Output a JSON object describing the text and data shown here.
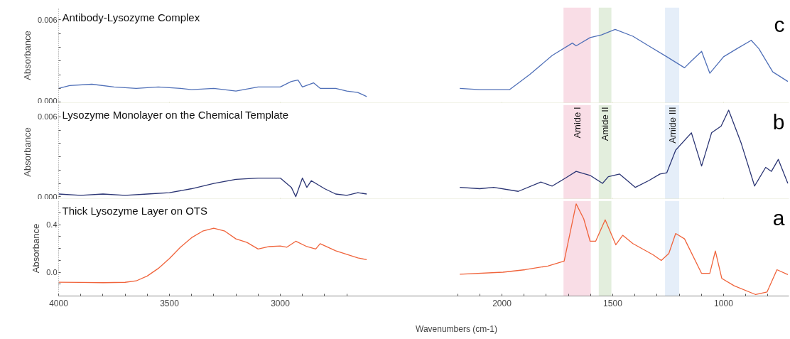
{
  "chart_data": [
    {
      "type": "line",
      "title": "Antibody-Lysozyme Complex",
      "ylabel": "Absorbance",
      "tick_labels": "y",
      "annotations": [
        "c"
      ],
      "xlim": [
        4000,
        705
      ],
      "ylim": [
        -0.0001,
        0.0069
      ],
      "xticks": [
        {
          "value": 4000,
          "label": null
        },
        {
          "value": 3500,
          "label": null
        },
        {
          "value": 3000,
          "label": null
        },
        {
          "value": 2000,
          "label": null
        },
        {
          "value": 1500,
          "label": null
        },
        {
          "value": 1000,
          "label": null
        }
      ],
      "yticks": [
        {
          "value": 0,
          "label": "0.000"
        },
        {
          "value": 0.001,
          "label": null
        },
        {
          "value": 0.002,
          "label": null
        },
        {
          "value": 0.003,
          "label": null
        },
        {
          "value": 0.004,
          "label": null
        },
        {
          "value": 0.005,
          "label": null
        },
        {
          "value": 0.006,
          "label": "0.006"
        }
      ],
      "bands": [
        {
          "axis": "x",
          "from": 1722,
          "to": 1599,
          "color": "#f9dde6"
        },
        {
          "axis": "x",
          "from": 1563,
          "to": 1506,
          "color": "#e3eedd"
        },
        {
          "axis": "x",
          "from": 1264,
          "to": 1200,
          "color": "#e5eef9"
        }
      ],
      "series": [
        {
          "color": "#5070b8",
          "x": [
            4000,
            3950,
            3850,
            3750,
            3650,
            3550,
            3450,
            3400,
            3300,
            3200,
            3100,
            3000,
            2950,
            2920,
            2900,
            2850,
            2820,
            2750,
            2700,
            2650,
            2610,
            2400,
            2190,
            2100,
            1966,
            1875,
            1773,
            1682,
            1665,
            1602,
            1551,
            1489,
            1409,
            1338,
            1256,
            1176,
            1145,
            1099,
            1062,
            1000,
            939,
            875,
            841,
            778,
            710
          ],
          "values": [
            0.001,
            0.0012,
            0.0013,
            0.0011,
            0.001,
            0.0011,
            0.001,
            0.0009,
            0.001,
            0.0008,
            0.0011,
            0.0011,
            0.0015,
            0.0016,
            0.0011,
            0.0014,
            0.001,
            0.001,
            0.0008,
            0.0007,
            0.0004,
            null,
            0.001,
            0.0009,
            0.0009,
            0.002,
            0.0034,
            0.0043,
            0.0041,
            0.0047,
            0.0049,
            0.0053,
            0.0048,
            0.0041,
            0.0033,
            0.0025,
            0.003,
            0.0037,
            0.0021,
            0.0033,
            0.0039,
            0.0045,
            0.0039,
            0.0022,
            0.0015
          ]
        }
      ]
    },
    {
      "type": "line",
      "title": "Lysozyme Monolayer on the Chemical Template",
      "ylabel": "Absorbance",
      "tick_labels": "y",
      "annotations": [
        "b"
      ],
      "xlim": [
        4000,
        705
      ],
      "ylim": [
        -0.0002,
        0.0069
      ],
      "xticks": [
        {
          "value": 4000,
          "label": null
        },
        {
          "value": 3500,
          "label": null
        },
        {
          "value": 3000,
          "label": null
        },
        {
          "value": 2000,
          "label": null
        },
        {
          "value": 1500,
          "label": null
        },
        {
          "value": 1000,
          "label": null
        }
      ],
      "yticks": [
        {
          "value": 0,
          "label": "0.000"
        },
        {
          "value": 0.001,
          "label": null
        },
        {
          "value": 0.002,
          "label": null
        },
        {
          "value": 0.003,
          "label": null
        },
        {
          "value": 0.004,
          "label": null
        },
        {
          "value": 0.005,
          "label": null
        },
        {
          "value": 0.006,
          "label": "0.006"
        }
      ],
      "bands": [
        {
          "axis": "x",
          "from": 1722,
          "to": 1599,
          "color": "#f9dde6",
          "label": "Amide I"
        },
        {
          "axis": "x",
          "from": 1563,
          "to": 1506,
          "color": "#e3eedd",
          "label": "Amide II"
        },
        {
          "axis": "x",
          "from": 1264,
          "to": 1200,
          "color": "#e5eef9",
          "label": "Amide III"
        }
      ],
      "series": [
        {
          "color": "#2b3574",
          "x": [
            4000,
            3900,
            3800,
            3700,
            3600,
            3500,
            3400,
            3300,
            3200,
            3100,
            3000,
            2950,
            2930,
            2900,
            2880,
            2860,
            2800,
            2750,
            2700,
            2650,
            2610,
            2400,
            2190,
            2100,
            2037,
            1926,
            1824,
            1773,
            1713,
            1665,
            1602,
            1546,
            1520,
            1469,
            1398,
            1338,
            1287,
            1256,
            1216,
            1145,
            1099,
            1054,
            1011,
            977,
            920,
            860,
            810,
            784,
            753,
            710
          ],
          "values": [
            0.0002,
            0.0001,
            0.0002,
            0.0001,
            0.0002,
            0.0003,
            0.0006,
            0.001,
            0.0013,
            0.0014,
            0.0014,
            0.0007,
            0.0,
            0.0014,
            0.0007,
            0.0012,
            0.0006,
            0.0002,
            0.0001,
            0.0003,
            0.0002,
            null,
            0.0007,
            0.0006,
            0.0007,
            0.0004,
            0.0011,
            0.0008,
            0.0014,
            0.0019,
            0.0016,
            0.001,
            0.0015,
            0.0017,
            0.0007,
            0.0012,
            0.0017,
            0.0018,
            0.0035,
            0.0048,
            0.0023,
            0.0048,
            0.0053,
            0.0065,
            0.004,
            0.0008,
            0.0022,
            0.0019,
            0.0028,
            0.001
          ]
        }
      ]
    },
    {
      "type": "line",
      "title": "Thick Lysozyme Layer on OTS",
      "ylabel": "Absorbance",
      "xlabel": "Wavenumbers (cm-1)",
      "annotations": [
        "a"
      ],
      "xlim": [
        4000,
        705
      ],
      "ylim": [
        -0.2,
        0.6
      ],
      "xticks": [
        4000,
        {
          "value": 3900,
          "label": null
        },
        {
          "value": 3800,
          "label": null
        },
        {
          "value": 3700,
          "label": null
        },
        {
          "value": 3600,
          "label": null
        },
        3500,
        {
          "value": 3400,
          "label": null
        },
        {
          "value": 3300,
          "label": null
        },
        {
          "value": 3200,
          "label": null
        },
        {
          "value": 3100,
          "label": null
        },
        3000,
        {
          "value": 2900,
          "label": null
        },
        {
          "value": 2800,
          "label": null
        },
        {
          "value": 2700,
          "label": null
        },
        {
          "value": 2200,
          "label": null
        },
        {
          "value": 2100,
          "label": null
        },
        2000,
        {
          "value": 1900,
          "label": null
        },
        {
          "value": 1800,
          "label": null
        },
        {
          "value": 1700,
          "label": null
        },
        {
          "value": 1600,
          "label": null
        },
        1500,
        {
          "value": 1400,
          "label": null
        },
        {
          "value": 1300,
          "label": null
        },
        {
          "value": 1200,
          "label": null
        },
        {
          "value": 1100,
          "label": null
        },
        1000,
        {
          "value": 900,
          "label": null
        },
        {
          "value": 800,
          "label": null
        }
      ],
      "yticks": [
        {
          "value": -0.1,
          "label": null
        },
        {
          "value": 0,
          "label": "0.0"
        },
        {
          "value": 0.1,
          "label": null
        },
        {
          "value": 0.2,
          "label": null
        },
        {
          "value": 0.3,
          "label": null
        },
        0.4,
        {
          "value": 0.5,
          "label": null
        }
      ],
      "bands": [
        {
          "axis": "x",
          "from": 1722,
          "to": 1599,
          "color": "#f9dde6"
        },
        {
          "axis": "x",
          "from": 1563,
          "to": 1506,
          "color": "#e3eedd"
        },
        {
          "axis": "x",
          "from": 1264,
          "to": 1200,
          "color": "#e5eef9"
        }
      ],
      "series": [
        {
          "color": "#f0643c",
          "x": [
            4000,
            3900,
            3800,
            3700,
            3650,
            3600,
            3550,
            3500,
            3450,
            3400,
            3350,
            3300,
            3250,
            3200,
            3150,
            3100,
            3050,
            3000,
            2970,
            2930,
            2880,
            2840,
            2820,
            2750,
            2650,
            2610,
            2400,
            2190,
            1995,
            1895,
            1793,
            1719,
            1693,
            1665,
            1631,
            1602,
            1577,
            1534,
            1486,
            1455,
            1409,
            1318,
            1281,
            1247,
            1216,
            1176,
            1099,
            1062,
            1037,
            1008,
            952,
            855,
            804,
            759,
            710
          ],
          "values": [
            -0.084,
            -0.086,
            -0.088,
            -0.085,
            -0.073,
            -0.032,
            0.032,
            0.115,
            0.21,
            0.29,
            0.345,
            0.37,
            0.345,
            0.28,
            0.25,
            0.195,
            0.215,
            0.22,
            0.21,
            0.26,
            0.215,
            0.195,
            0.24,
            0.18,
            0.12,
            0.105,
            null,
            -0.017,
            0.0,
            0.021,
            0.052,
            0.094,
            0.325,
            0.574,
            0.449,
            0.26,
            0.26,
            0.44,
            0.23,
            0.31,
            0.24,
            0.146,
            0.098,
            0.157,
            0.325,
            0.28,
            -0.01,
            -0.01,
            0.178,
            -0.052,
            -0.114,
            -0.188,
            -0.167,
            0.021,
            -0.02
          ]
        }
      ]
    }
  ]
}
